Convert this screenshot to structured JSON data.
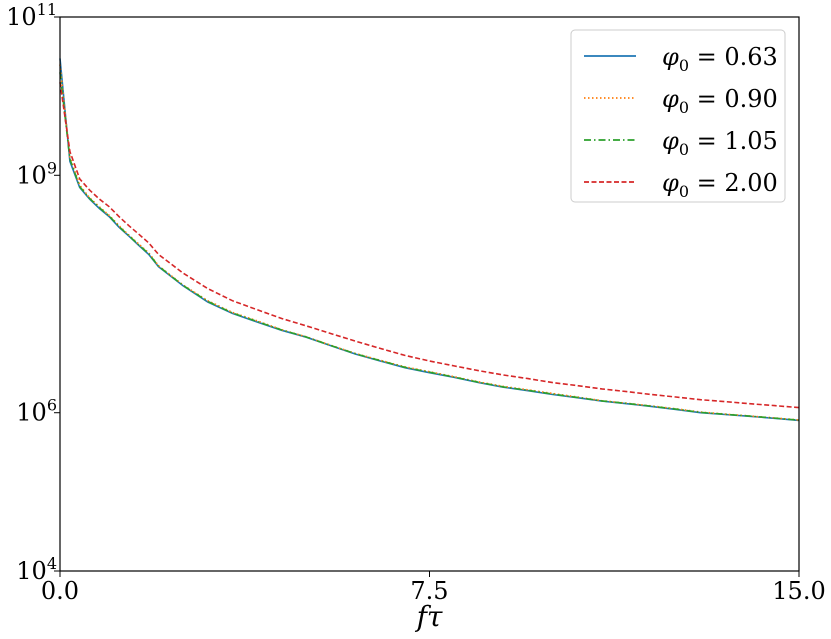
{
  "chart_data": {
    "type": "line",
    "title": "",
    "xlabel": "fτ",
    "ylabel": "",
    "xlim": [
      0.0,
      15.0
    ],
    "ylim": [
      10000,
      100000000000
    ],
    "yscale": "log",
    "x_ticks": [
      {
        "value": 0.0,
        "label": "0.0"
      },
      {
        "value": 7.5,
        "label": "7.5"
      },
      {
        "value": 15.0,
        "label": "15.0"
      }
    ],
    "y_ticks": [
      {
        "value": 10000,
        "base": "10",
        "exp": "4"
      },
      {
        "value": 1000000,
        "base": "10",
        "exp": "6"
      },
      {
        "value": 1000000000,
        "base": "10",
        "exp": "9"
      },
      {
        "value": 100000000000,
        "base": "10",
        "exp": "11"
      }
    ],
    "legend_position": "top-right",
    "grid": false,
    "series": [
      {
        "name": "φ0 = 0.63",
        "label_symbol": "φ",
        "label_sub": "0",
        "label_rest": " = 0.63",
        "color": "#1f77b4",
        "style": "solid",
        "x": [
          0.0,
          0.2,
          0.4,
          0.6,
          0.8,
          1.0,
          1.2,
          1.4,
          1.6,
          1.8,
          2.0,
          2.5,
          3.0,
          3.5,
          4.0,
          4.5,
          5.0,
          5.5,
          6.0,
          6.5,
          7.0,
          7.5,
          8.0,
          8.5,
          9.0,
          9.5,
          10.0,
          10.5,
          11.0,
          11.5,
          12.0,
          12.5,
          13.0,
          13.5,
          14.0,
          14.5,
          15.0
        ],
        "values": [
          30000000000,
          1500000000,
          700000000,
          500000000,
          380000000,
          300000000,
          220000000,
          170000000,
          130000000,
          100000000,
          70000000,
          40000000,
          25000000,
          18000000,
          14000000,
          11000000,
          9000000,
          7000000,
          5500000,
          4500000,
          3700000,
          3200000,
          2800000,
          2400000,
          2100000,
          1900000,
          1700000,
          1550000,
          1400000,
          1300000,
          1200000,
          1100000,
          1000000,
          950000,
          900000,
          850000,
          800000
        ]
      },
      {
        "name": "φ0 = 0.90",
        "label_symbol": "φ",
        "label_sub": "0",
        "label_rest": " = 0.90",
        "color": "#ff7f0e",
        "style": "dotted",
        "x": [
          0.0,
          0.2,
          0.4,
          0.6,
          0.8,
          1.0,
          1.2,
          1.4,
          1.6,
          1.8,
          2.0,
          2.5,
          3.0,
          3.5,
          4.0,
          4.5,
          5.0,
          5.5,
          6.0,
          6.5,
          7.0,
          7.5,
          8.0,
          8.5,
          9.0,
          9.5,
          10.0,
          10.5,
          11.0,
          11.5,
          12.0,
          12.5,
          13.0,
          13.5,
          14.0,
          14.5,
          15.0
        ],
        "values": [
          25000000000,
          1700000000,
          750000000,
          520000000,
          400000000,
          310000000,
          230000000,
          175000000,
          135000000,
          105000000,
          72000000,
          41000000,
          26000000,
          18500000,
          14500000,
          11200000,
          9100000,
          7100000,
          5600000,
          4600000,
          3800000,
          3300000,
          2850000,
          2450000,
          2150000,
          1950000,
          1750000,
          1580000,
          1420000,
          1320000,
          1220000,
          1120000,
          1020000,
          960000,
          910000,
          860000,
          810000
        ]
      },
      {
        "name": "φ0 = 1.05",
        "label_symbol": "φ",
        "label_sub": "0",
        "label_rest": " = 1.05",
        "color": "#2ca02c",
        "style": "dashdot",
        "x": [
          0.0,
          0.2,
          0.4,
          0.6,
          0.8,
          1.0,
          1.2,
          1.4,
          1.6,
          1.8,
          2.0,
          2.5,
          3.0,
          3.5,
          4.0,
          4.5,
          5.0,
          5.5,
          6.0,
          6.5,
          7.0,
          7.5,
          8.0,
          8.5,
          9.0,
          9.5,
          10.0,
          10.5,
          11.0,
          11.5,
          12.0,
          12.5,
          13.0,
          13.5,
          14.0,
          14.5,
          15.0
        ],
        "values": [
          20000000000,
          1600000000,
          720000000,
          510000000,
          390000000,
          305000000,
          225000000,
          172000000,
          132000000,
          102000000,
          71000000,
          40500000,
          25500000,
          18200000,
          14200000,
          11100000,
          9050000,
          7050000,
          5550000,
          4550000,
          3750000,
          3250000,
          2820000,
          2420000,
          2120000,
          1920000,
          1720000,
          1560000,
          1410000,
          1310000,
          1210000,
          1110000,
          1010000,
          955000,
          905000,
          855000,
          805000
        ]
      },
      {
        "name": "φ0 = 2.00",
        "label_symbol": "φ",
        "label_sub": "0",
        "label_rest": " = 2.00",
        "color": "#d62728",
        "style": "dashed",
        "x": [
          0.0,
          0.2,
          0.4,
          0.6,
          0.8,
          1.0,
          1.2,
          1.4,
          1.6,
          1.8,
          2.0,
          2.5,
          3.0,
          3.5,
          4.0,
          4.5,
          5.0,
          5.5,
          6.0,
          6.5,
          7.0,
          7.5,
          8.0,
          8.5,
          9.0,
          9.5,
          10.0,
          10.5,
          11.0,
          11.5,
          12.0,
          12.5,
          13.0,
          13.5,
          14.0,
          14.5,
          15.0
        ],
        "values": [
          15000000000,
          2000000000,
          900000000,
          650000000,
          500000000,
          400000000,
          300000000,
          230000000,
          180000000,
          140000000,
          100000000,
          58000000,
          37000000,
          26000000,
          20000000,
          15500000,
          12500000,
          10000000,
          8000000,
          6500000,
          5300000,
          4500000,
          3900000,
          3400000,
          3000000,
          2700000,
          2400000,
          2200000,
          2000000,
          1850000,
          1700000,
          1580000,
          1460000,
          1380000,
          1300000,
          1230000,
          1160000
        ]
      }
    ]
  }
}
